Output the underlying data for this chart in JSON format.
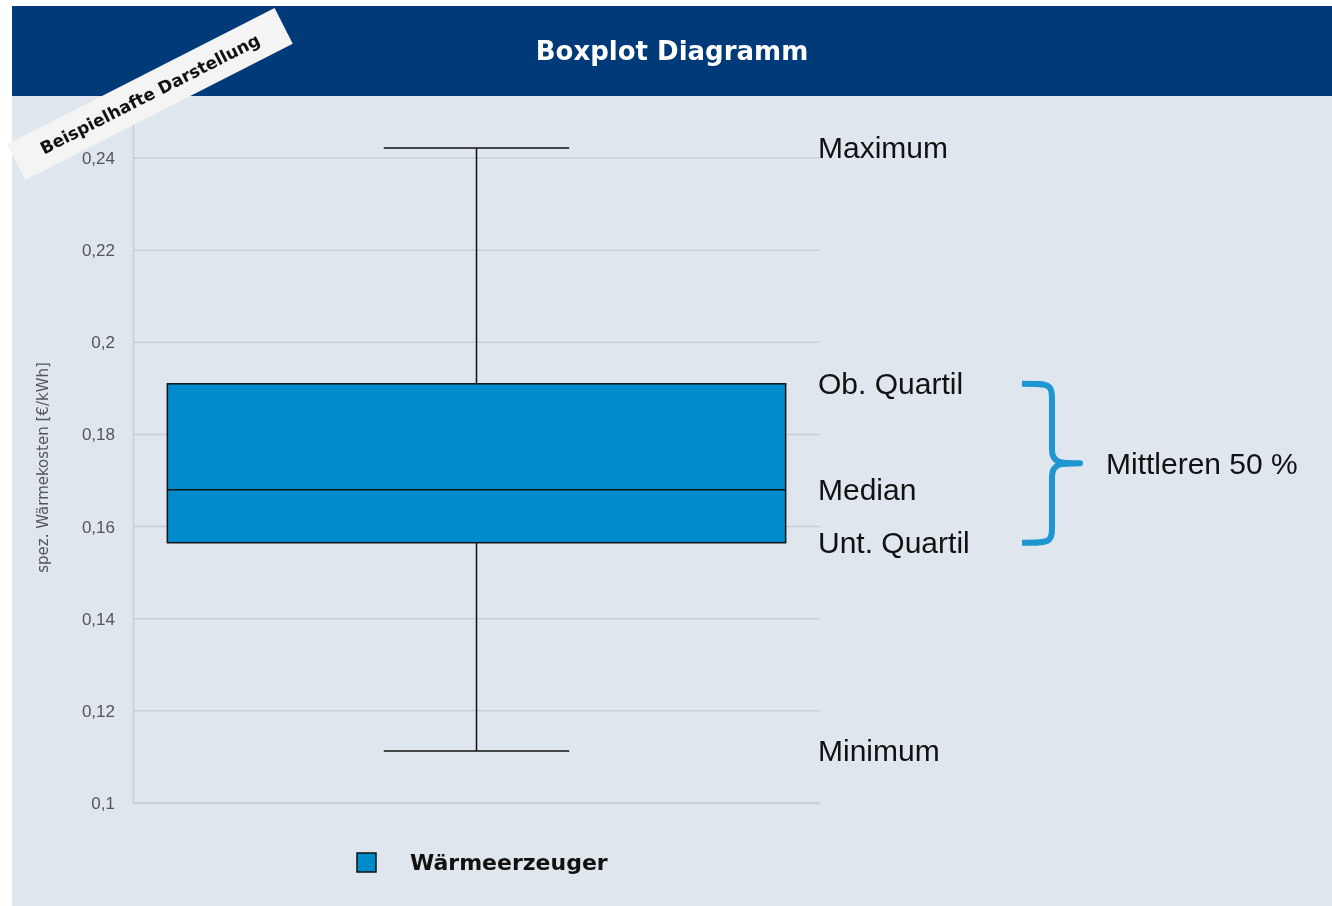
{
  "chart_data": {
    "type": "box",
    "title": "Boxplot Diagramm",
    "ylabel": "spez. Wärmekosten [€/kWh]",
    "categories": [
      null
    ],
    "series": [
      {
        "name": "Wärmeerzeuger",
        "color": "#008ccc",
        "boxes": [
          {
            "low": 0.1113,
            "q1": 0.1565,
            "median": 0.168,
            "q3": 0.191,
            "high": 0.2422
          }
        ]
      }
    ],
    "ylim": [
      0.1,
      0.25
    ],
    "yticks": [
      {
        "value": 0.1,
        "label": "0,1"
      },
      {
        "value": 0.12,
        "label": "0,12"
      },
      {
        "value": 0.14,
        "label": "0,14"
      },
      {
        "value": 0.16,
        "label": "0,16"
      },
      {
        "value": 0.18,
        "label": "0,18"
      },
      {
        "value": 0.2,
        "label": "0,2"
      },
      {
        "value": 0.22,
        "label": "0,22"
      },
      {
        "value": 0.24,
        "label": "0,24"
      }
    ],
    "grid": "y",
    "legend": "bottom",
    "annotations": [
      "Beispielhafte Darstellung",
      "Maximum",
      "Ob. Quartil",
      "Median",
      "Unt. Quartil",
      "Minimum",
      "Mittleren 50 %"
    ]
  }
}
